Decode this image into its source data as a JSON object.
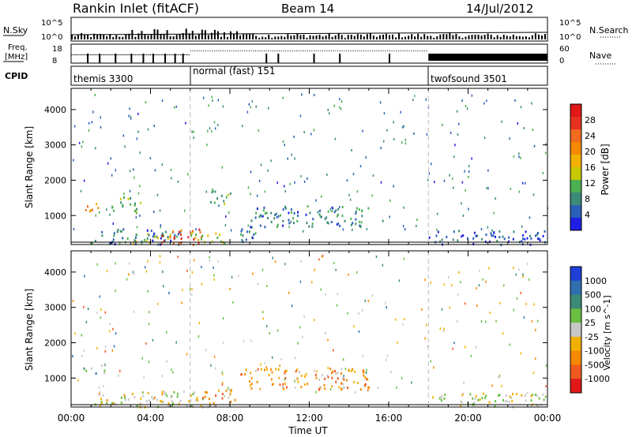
{
  "header": {
    "title": "Rankin Inlet (fitACF)",
    "beam": "Beam 14",
    "date": "14/Jul/2012"
  },
  "top_panels": {
    "nsky_label": "N.Sky",
    "nsky_ticks": [
      "10^5",
      "10^0"
    ],
    "nsearch_label": "N.Search",
    "nsearch_ticks": [
      "10^5",
      "10^0"
    ],
    "freq_label": "Freq.",
    "freq_unit": "[MHz]",
    "freq_ticks": [
      "18",
      "8"
    ],
    "nave_label": "Nave",
    "nave_ticks": [
      "60",
      "0"
    ],
    "cpid_label": "CPID",
    "cpid_segments": [
      {
        "label": "themis 3300",
        "start": 0
      },
      {
        "label": "normal (fast) 151",
        "start": 6
      },
      {
        "label": "twofsound 3501",
        "start": 18
      }
    ]
  },
  "chart_data": [
    {
      "type": "heatmap",
      "name": "power",
      "ylabel": "Slant Range [km]",
      "xlabel": "Time UT",
      "x_ticks": [
        "00:00",
        "04:00",
        "08:00",
        "12:00",
        "16:00",
        "20:00",
        "00:00"
      ],
      "x_range_hours": [
        0,
        24
      ],
      "ylim": [
        180,
        4600
      ],
      "y_ticks": [
        1000,
        2000,
        3000,
        4000
      ],
      "colorbar": {
        "label": "Power [dB]",
        "ticks": [
          "4",
          "8",
          "12",
          "16",
          "20",
          "24",
          "28"
        ],
        "colors": [
          "#1f1fe6",
          "#2b5fb8",
          "#3c8a78",
          "#4caf50",
          "#c8c800",
          "#f2b000",
          "#f58a00",
          "#f06a20",
          "#e83020",
          "#e01818"
        ]
      },
      "echo_regions": [
        {
          "t0": 0.6,
          "t1": 1.5,
          "r0": 1150,
          "r1": 1450,
          "level": 0.65
        },
        {
          "t0": 1.0,
          "t1": 5.5,
          "r0": 200,
          "r1": 650,
          "level": 0.15
        },
        {
          "t0": 3.0,
          "t1": 5.0,
          "r0": 250,
          "r1": 550,
          "level": 0.4
        },
        {
          "t0": 4.5,
          "t1": 6.6,
          "r0": 200,
          "r1": 650,
          "level": 0.85
        },
        {
          "t0": 6.0,
          "t1": 7.8,
          "r0": 200,
          "r1": 550,
          "level": 0.45
        },
        {
          "t0": 2.0,
          "t1": 3.5,
          "r0": 1100,
          "r1": 1600,
          "level": 0.35
        },
        {
          "t0": 6.8,
          "t1": 8.0,
          "r0": 1350,
          "r1": 1750,
          "level": 0.3
        },
        {
          "t0": 9.0,
          "t1": 15.0,
          "r0": 700,
          "r1": 1300,
          "level": 0.2
        },
        {
          "t0": 8.5,
          "t1": 9.5,
          "r0": 200,
          "r1": 700,
          "level": 0.2
        },
        {
          "t0": 18.0,
          "t1": 24.0,
          "r0": 200,
          "r1": 600,
          "level": 0.1
        }
      ]
    },
    {
      "type": "heatmap",
      "name": "velocity",
      "ylabel": "Slant Range [km]",
      "xlabel": "Time UT",
      "x_ticks": [
        "00:00",
        "04:00",
        "08:00",
        "12:00",
        "16:00",
        "20:00",
        "00:00"
      ],
      "x_range_hours": [
        0,
        24
      ],
      "ylim": [
        180,
        4600
      ],
      "y_ticks": [
        1000,
        2000,
        3000,
        4000
      ],
      "colorbar": {
        "label": "Velocity [m s^-1]",
        "ticks": [
          "1000",
          "500",
          "100",
          "25",
          "-25",
          "-100",
          "-500",
          "-1000"
        ],
        "colors": [
          "#1f3fd6",
          "#2f6fb0",
          "#3c8a78",
          "#6bbf40",
          "#c8c8c8",
          "#f2b000",
          "#f58a00",
          "#f05a20",
          "#e01818"
        ]
      },
      "echo_regions": [
        {
          "t0": 0.6,
          "t1": 1.8,
          "r0": 1150,
          "r1": 1450,
          "level": 0.35
        },
        {
          "t0": 1.0,
          "t1": 5.5,
          "r0": 200,
          "r1": 650,
          "level": 0.55
        },
        {
          "t0": 4.5,
          "t1": 6.6,
          "r0": 200,
          "r1": 650,
          "level": 0.5
        },
        {
          "t0": 6.5,
          "t1": 8.5,
          "r0": 200,
          "r1": 700,
          "level": 0.65
        },
        {
          "t0": 8.5,
          "t1": 15.0,
          "r0": 700,
          "r1": 1300,
          "level": 0.7
        },
        {
          "t0": 18.0,
          "t1": 24.0,
          "r0": 200,
          "r1": 600,
          "level": 0.5
        }
      ]
    }
  ]
}
